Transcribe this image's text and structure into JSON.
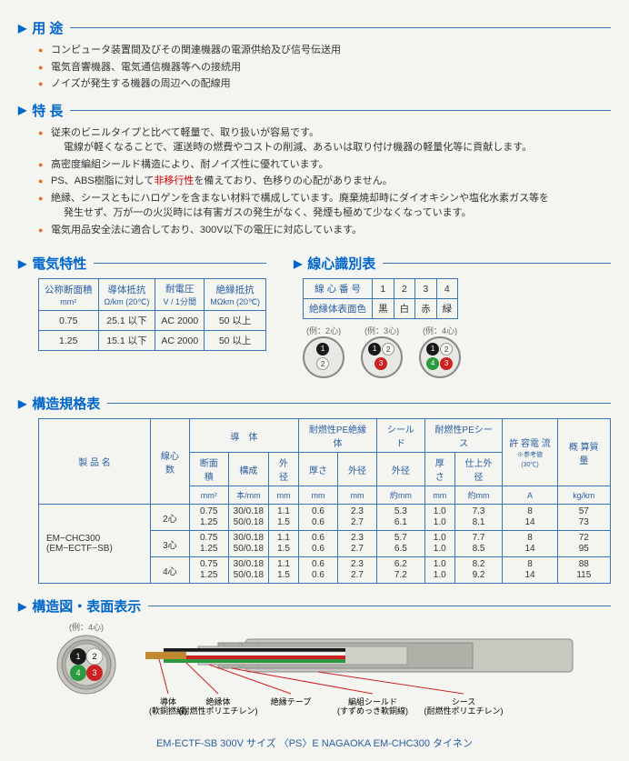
{
  "sections": {
    "uses_title": "用 途",
    "features_title": "特 長",
    "elec_title": "電気特性",
    "coreid_title": "線心識別表",
    "struct_title": "構造規格表",
    "diagram_title": "構造図・表面表示"
  },
  "uses": [
    "コンピュータ装置間及びその関連機器の電源供給及び信号伝送用",
    "電気音響機器、電気通信機器等への接続用",
    "ノイズが発生する機器の周辺への配線用"
  ],
  "features": {
    "f1": "従来のビニルタイプと比べて軽量で、取り扱いが容易です。",
    "f1b": "電線が軽くなることで、運送時の燃費やコストの削減、あるいは取り付け機器の軽量化等に貢献します。",
    "f2": "高密度編組シールド構造により、耐ノイズ性に優れています。",
    "f3a": "PS、ABS樹脂に対して",
    "f3b": "非移行性",
    "f3c": "を備えており、色移りの心配がありません。",
    "f4a": "絶縁、シースともにハロゲンを含まない材料で構成しています。廃棄焼却時にダイオキシンや塩化水素ガス等を",
    "f4b": "発生せず、万が一の火災時には有害ガスの発生がなく、発煙も極めて少なくなっています。",
    "f5": "電気用品安全法に適合しており、300V以下の電圧に対応しています。"
  },
  "elec_table": {
    "headers": {
      "h1": "公称断面積",
      "h1u": "mm²",
      "h2": "導体抵抗",
      "h2u": "Ω/km (20℃)",
      "h3": "耐電圧",
      "h3u": "V / 1分間",
      "h4": "絶縁抵抗",
      "h4u": "MΩkm (20℃)"
    },
    "rows": [
      {
        "a": "0.75",
        "b": "25.1 以下",
        "c": "AC 2000",
        "d": "50 以上"
      },
      {
        "a": "1.25",
        "b": "15.1 以下",
        "c": "AC 2000",
        "d": "50 以上"
      }
    ]
  },
  "coreid_table": {
    "row1_label": "線 心 番 号",
    "row2_label": "絶縁体表面色",
    "nums": [
      "1",
      "2",
      "3",
      "4"
    ],
    "cols": [
      "黒",
      "白",
      "赤",
      "緑"
    ]
  },
  "core_examples": {
    "e2": "(例：2心)",
    "e3": "(例：3心)",
    "e4": "(例：4心)"
  },
  "struct_table": {
    "product_header": "製 品 名",
    "cores_header": "線心数",
    "conductor_header": "導　体",
    "pe_ins_header": "耐燃性PE絶縁体",
    "shield_header": "シールド",
    "pe_sheath_header": "耐燃性PEシース",
    "curr_header": "許 容電 流",
    "curr_note": "※参考値(30℃)",
    "weight_header": "概 算質 量",
    "sub": {
      "area": "断面積",
      "area_u": "mm²",
      "comp": "構成",
      "comp_u": "本/mm",
      "od": "外径",
      "od_u": "mm",
      "thk": "厚さ",
      "thk_u": "mm",
      "od2": "外径",
      "od2_u": "mm",
      "od3": "外径",
      "od3_u": "約mm",
      "thk2": "厚さ",
      "thk2_u": "mm",
      "finod": "仕上外径",
      "finod_u": "約mm",
      "curr_u": "A",
      "weight_u": "kg/km"
    },
    "product": {
      "name1": "EM−CHC300",
      "name2": "(EM−ECTF−SB)"
    },
    "rows": [
      {
        "cores": "2心",
        "a": "0.75",
        "b": "30/0.18",
        "c": "1.1",
        "d": "0.6",
        "e": "2.3",
        "f": "5.3",
        "g": "1.0",
        "h": "7.3",
        "i": "8",
        "j": "57"
      },
      {
        "cores": "",
        "a": "1.25",
        "b": "50/0.18",
        "c": "1.5",
        "d": "0.6",
        "e": "2.7",
        "f": "6.1",
        "g": "1.0",
        "h": "8.1",
        "i": "14",
        "j": "73"
      },
      {
        "cores": "3心",
        "a": "0.75",
        "b": "30/0.18",
        "c": "1.1",
        "d": "0.6",
        "e": "2.3",
        "f": "5.7",
        "g": "1.0",
        "h": "7.7",
        "i": "8",
        "j": "72"
      },
      {
        "cores": "",
        "a": "1.25",
        "b": "50/0.18",
        "c": "1.5",
        "d": "0.6",
        "e": "2.7",
        "f": "6.5",
        "g": "1.0",
        "h": "8.5",
        "i": "14",
        "j": "95"
      },
      {
        "cores": "4心",
        "a": "0.75",
        "b": "30/0.18",
        "c": "1.1",
        "d": "0.6",
        "e": "2.3",
        "f": "6.2",
        "g": "1.0",
        "h": "8.2",
        "i": "8",
        "j": "88"
      },
      {
        "cores": "",
        "a": "1.25",
        "b": "50/0.18",
        "c": "1.5",
        "d": "0.6",
        "e": "2.7",
        "f": "7.2",
        "g": "1.0",
        "h": "9.2",
        "i": "14",
        "j": "115"
      }
    ]
  },
  "diagram": {
    "example_label": "(例：4心)",
    "labels": {
      "conductor": "導体",
      "conductor_sub": "(軟銅撚線)",
      "insul": "絶縁体",
      "insul_sub": "(耐燃性ポリエチレン)",
      "tape": "絶縁テープ",
      "shield": "編組シールド",
      "shield_sub": "(すずめっき軟銅線)",
      "sheath": "シース",
      "sheath_sub": "(耐燃性ポリエチレン)"
    },
    "footer": "EM-ECTF-SB  300V  サイズ 〈PS〉E  NAGAOKA  EM-CHC300  タイネン",
    "colors": {
      "conductor": "#c08830",
      "black": "#1a1a1a",
      "white": "#f5f5f2",
      "red": "#cc2222",
      "green": "#2a9940",
      "tape": "#d0d0c8",
      "shield": "#b0b0a8",
      "sheath": "#c8c8c0",
      "leader": "#cc2222"
    }
  }
}
